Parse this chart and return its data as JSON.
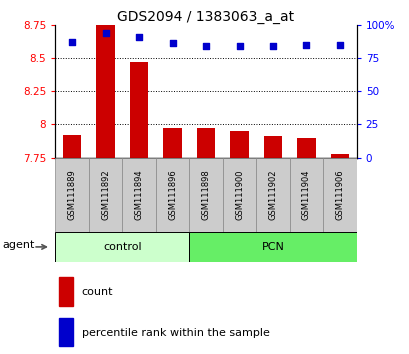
{
  "title": "GDS2094 / 1383063_a_at",
  "samples": [
    "GSM111889",
    "GSM111892",
    "GSM111894",
    "GSM111896",
    "GSM111898",
    "GSM111900",
    "GSM111902",
    "GSM111904",
    "GSM111906"
  ],
  "bar_values": [
    7.92,
    8.75,
    8.47,
    7.97,
    7.97,
    7.95,
    7.91,
    7.9,
    7.78
  ],
  "percentile_values": [
    87,
    94,
    91,
    86,
    84,
    84,
    84,
    85,
    85
  ],
  "bar_bottom": 7.75,
  "ylim_left": [
    7.75,
    8.75
  ],
  "ylim_right": [
    0,
    100
  ],
  "yticks_left": [
    7.75,
    8.0,
    8.25,
    8.5,
    8.75
  ],
  "ytick_labels_left": [
    "7.75",
    "8",
    "8.25",
    "8.5",
    "8.75"
  ],
  "yticks_right": [
    0,
    25,
    50,
    75,
    100
  ],
  "ytick_labels_right": [
    "0",
    "25",
    "50",
    "75",
    "100%"
  ],
  "groups": [
    {
      "label": "control",
      "indices": [
        0,
        1,
        2,
        3
      ],
      "color": "#ccffcc"
    },
    {
      "label": "PCN",
      "indices": [
        4,
        5,
        6,
        7,
        8
      ],
      "color": "#66ee66"
    }
  ],
  "bar_color": "#cc0000",
  "dot_color": "#0000cc",
  "agent_label": "agent",
  "legend_bar_label": "count",
  "legend_dot_label": "percentile rank within the sample",
  "title_fontsize": 10,
  "tick_fontsize": 7.5,
  "label_fontsize": 8,
  "sample_fontsize": 6,
  "xlim": [
    -0.5,
    8.5
  ]
}
